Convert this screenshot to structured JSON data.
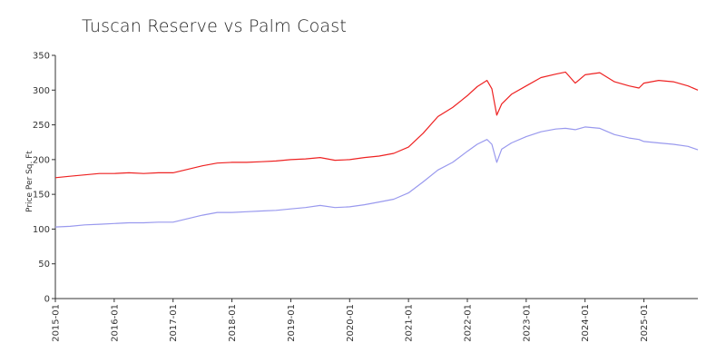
{
  "chart_data": {
    "type": "line",
    "title": "Tuscan Reserve vs Palm Coast",
    "xlabel": "",
    "ylabel": "Price Per Sq. Ft",
    "ylim": [
      0,
      350
    ],
    "yticks": [
      0,
      50,
      100,
      150,
      200,
      250,
      300,
      350
    ],
    "xticks": [
      "2015-01",
      "2016-01",
      "2017-01",
      "2018-01",
      "2019-01",
      "2020-01",
      "2021-01",
      "2022-01",
      "2023-01",
      "2024-01",
      "2025-01"
    ],
    "x_start": "2015-01",
    "x_end": "2025-12",
    "grid": false,
    "legend": "none",
    "series": [
      {
        "color": "#ee2222",
        "points": [
          [
            "2015-01",
            174
          ],
          [
            "2015-04",
            176
          ],
          [
            "2015-07",
            178
          ],
          [
            "2015-10",
            180
          ],
          [
            "2016-01",
            180
          ],
          [
            "2016-04",
            181
          ],
          [
            "2016-07",
            180
          ],
          [
            "2016-10",
            181
          ],
          [
            "2017-01",
            181
          ],
          [
            "2017-04",
            186
          ],
          [
            "2017-07",
            191
          ],
          [
            "2017-10",
            195
          ],
          [
            "2018-01",
            196
          ],
          [
            "2018-04",
            196
          ],
          [
            "2018-07",
            197
          ],
          [
            "2018-10",
            198
          ],
          [
            "2019-01",
            200
          ],
          [
            "2019-04",
            201
          ],
          [
            "2019-07",
            203
          ],
          [
            "2019-10",
            199
          ],
          [
            "2020-01",
            200
          ],
          [
            "2020-04",
            203
          ],
          [
            "2020-07",
            205
          ],
          [
            "2020-10",
            209
          ],
          [
            "2021-01",
            218
          ],
          [
            "2021-04",
            238
          ],
          [
            "2021-07",
            262
          ],
          [
            "2021-10",
            275
          ],
          [
            "2022-01",
            292
          ],
          [
            "2022-03",
            305
          ],
          [
            "2022-05",
            314
          ],
          [
            "2022-06",
            302
          ],
          [
            "2022-07",
            264
          ],
          [
            "2022-08",
            280
          ],
          [
            "2022-10",
            294
          ],
          [
            "2023-01",
            306
          ],
          [
            "2023-04",
            318
          ],
          [
            "2023-07",
            323
          ],
          [
            "2023-09",
            326
          ],
          [
            "2023-11",
            310
          ],
          [
            "2024-01",
            322
          ],
          [
            "2024-04",
            325
          ],
          [
            "2024-07",
            312
          ],
          [
            "2024-10",
            306
          ],
          [
            "2024-12",
            303
          ],
          [
            "2025-01",
            310
          ],
          [
            "2025-04",
            314
          ],
          [
            "2025-07",
            312
          ],
          [
            "2025-10",
            306
          ],
          [
            "2025-12",
            300
          ]
        ]
      },
      {
        "color": "#9999ee",
        "points": [
          [
            "2015-01",
            103
          ],
          [
            "2015-04",
            104
          ],
          [
            "2015-07",
            106
          ],
          [
            "2015-10",
            107
          ],
          [
            "2016-01",
            108
          ],
          [
            "2016-04",
            109
          ],
          [
            "2016-07",
            109
          ],
          [
            "2016-10",
            110
          ],
          [
            "2017-01",
            110
          ],
          [
            "2017-04",
            115
          ],
          [
            "2017-07",
            120
          ],
          [
            "2017-10",
            124
          ],
          [
            "2018-01",
            124
          ],
          [
            "2018-04",
            125
          ],
          [
            "2018-07",
            126
          ],
          [
            "2018-10",
            127
          ],
          [
            "2019-01",
            129
          ],
          [
            "2019-04",
            131
          ],
          [
            "2019-07",
            134
          ],
          [
            "2019-10",
            131
          ],
          [
            "2020-01",
            132
          ],
          [
            "2020-04",
            135
          ],
          [
            "2020-07",
            139
          ],
          [
            "2020-10",
            143
          ],
          [
            "2021-01",
            152
          ],
          [
            "2021-04",
            168
          ],
          [
            "2021-07",
            185
          ],
          [
            "2021-10",
            196
          ],
          [
            "2022-01",
            212
          ],
          [
            "2022-03",
            222
          ],
          [
            "2022-05",
            229
          ],
          [
            "2022-06",
            222
          ],
          [
            "2022-07",
            196
          ],
          [
            "2022-08",
            215
          ],
          [
            "2022-10",
            224
          ],
          [
            "2023-01",
            233
          ],
          [
            "2023-04",
            240
          ],
          [
            "2023-07",
            244
          ],
          [
            "2023-09",
            245
          ],
          [
            "2023-11",
            243
          ],
          [
            "2024-01",
            247
          ],
          [
            "2024-04",
            245
          ],
          [
            "2024-07",
            236
          ],
          [
            "2024-10",
            231
          ],
          [
            "2024-12",
            229
          ],
          [
            "2025-01",
            226
          ],
          [
            "2025-04",
            224
          ],
          [
            "2025-07",
            222
          ],
          [
            "2025-10",
            219
          ],
          [
            "2025-12",
            214
          ]
        ]
      }
    ]
  }
}
